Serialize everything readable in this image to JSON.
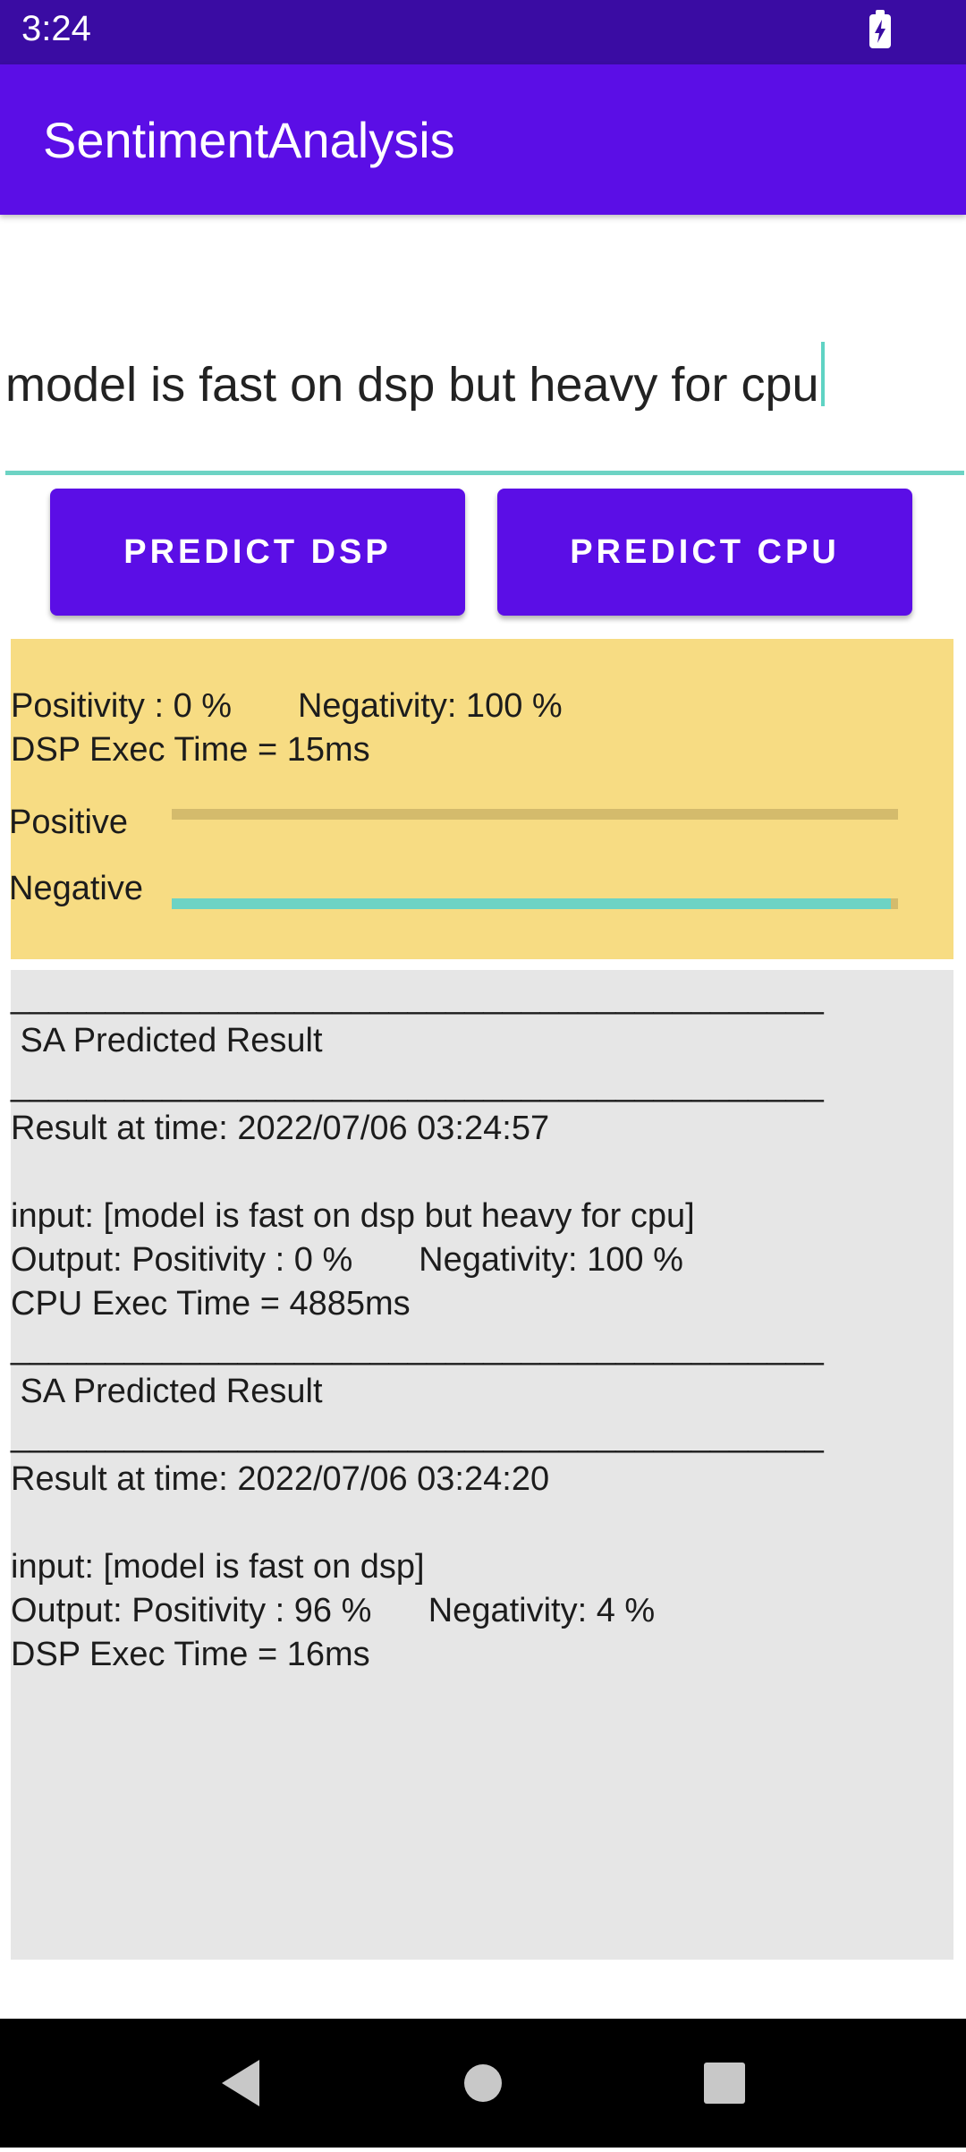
{
  "status_bar": {
    "time": "3:24",
    "battery_icon": "battery-charging-icon"
  },
  "app_bar": {
    "title": "SentimentAnalysis"
  },
  "input": {
    "value": "model is fast on dsp but heavy for cpu"
  },
  "buttons": {
    "predict_dsp": "PREDICT DSP",
    "predict_cpu": "PREDICT CPU"
  },
  "result_card": {
    "positivity_line": "Positivity : 0 %       Negativity: 100 %",
    "exec_time": "DSP Exec Time = 15ms",
    "positive_label": "Positive",
    "negative_label": "Negative",
    "positive_fraction": 0.0,
    "negative_fraction": 0.99
  },
  "history": {
    "text": "___________________________________________\n SA Predicted Result\n___________________________________________\nResult at time: 2022/07/06 03:24:57\n\ninput: [model is fast on dsp but heavy for cpu]\nOutput: Positivity : 0 %       Negativity: 100 %\nCPU Exec Time = 4885ms\n___________________________________________\n SA Predicted Result\n___________________________________________\nResult at time: 2022/07/06 03:24:20\n\ninput: [model is fast on dsp]\nOutput: Positivity : 96 %      Negativity: 4 %\nDSP Exec Time = 16ms"
  },
  "nav_bar": {
    "back_icon": "back-triangle-icon",
    "home_icon": "home-circle-icon",
    "recents_icon": "recents-square-icon"
  },
  "colors": {
    "status_bar": "#3a0ca3",
    "app_bar": "#5b0ee6",
    "accent": "#6dd3c4",
    "card": "#f7dc83",
    "history_bg": "#e6e6e6"
  }
}
